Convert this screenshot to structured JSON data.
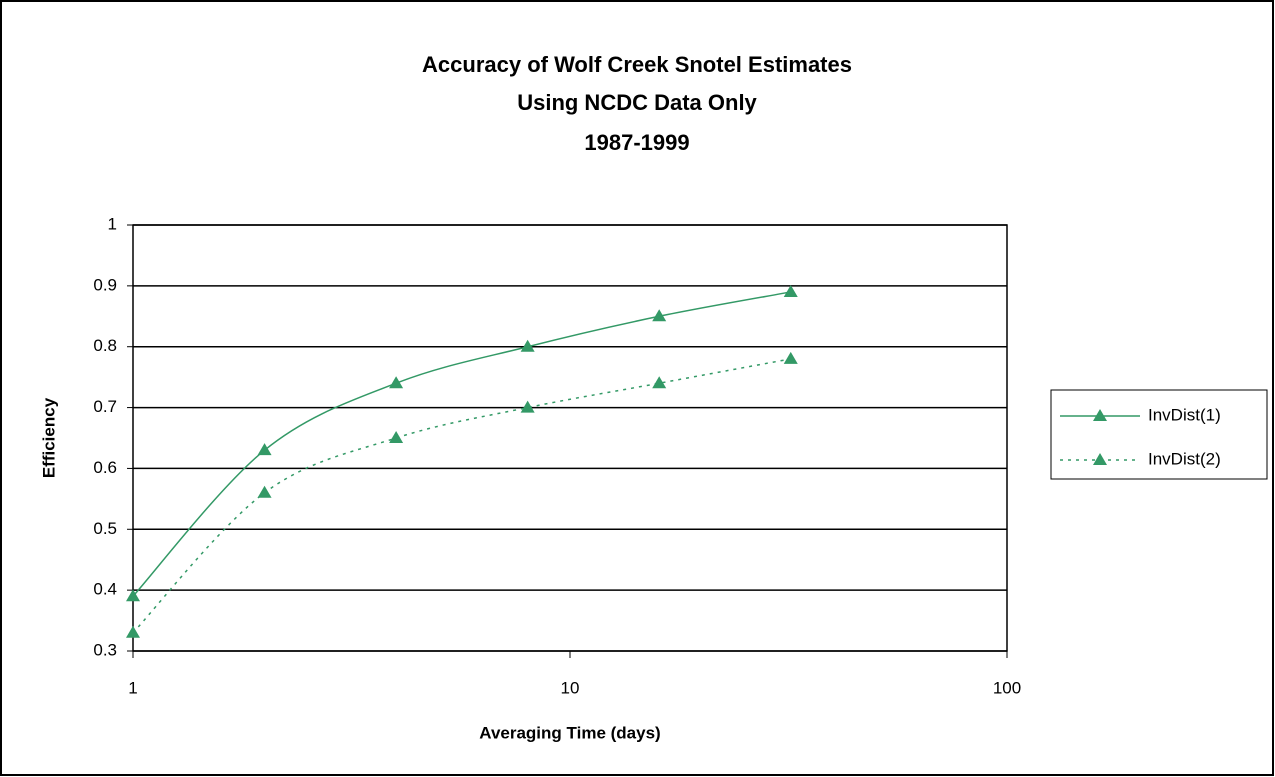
{
  "chart_data": {
    "type": "line",
    "title": [
      "Accuracy of Wolf Creek Snotel Estimates",
      "Using NCDC Data Only",
      "1987-1999"
    ],
    "x_label": "Averaging Time (days)",
    "y_label": "Efficiency",
    "x": [
      1,
      2,
      4,
      8,
      16,
      32
    ],
    "series": [
      {
        "name": "InvDist(1)",
        "color": "#339966",
        "line_style": "solid",
        "values": [
          0.39,
          0.63,
          0.74,
          0.8,
          0.85,
          0.89
        ]
      },
      {
        "name": "InvDist(2)",
        "color": "#339966",
        "line_style": "dotted",
        "values": [
          0.33,
          0.56,
          0.65,
          0.7,
          0.74,
          0.78
        ]
      }
    ],
    "xscale": "log",
    "xlim": [
      1,
      100
    ],
    "xticks": [
      1,
      10,
      100
    ],
    "ylim": [
      0.3,
      1
    ],
    "yticks": [
      0.3,
      0.4,
      0.5,
      0.6,
      0.7,
      0.8,
      0.9,
      1
    ],
    "grid": true,
    "legend": "right"
  }
}
